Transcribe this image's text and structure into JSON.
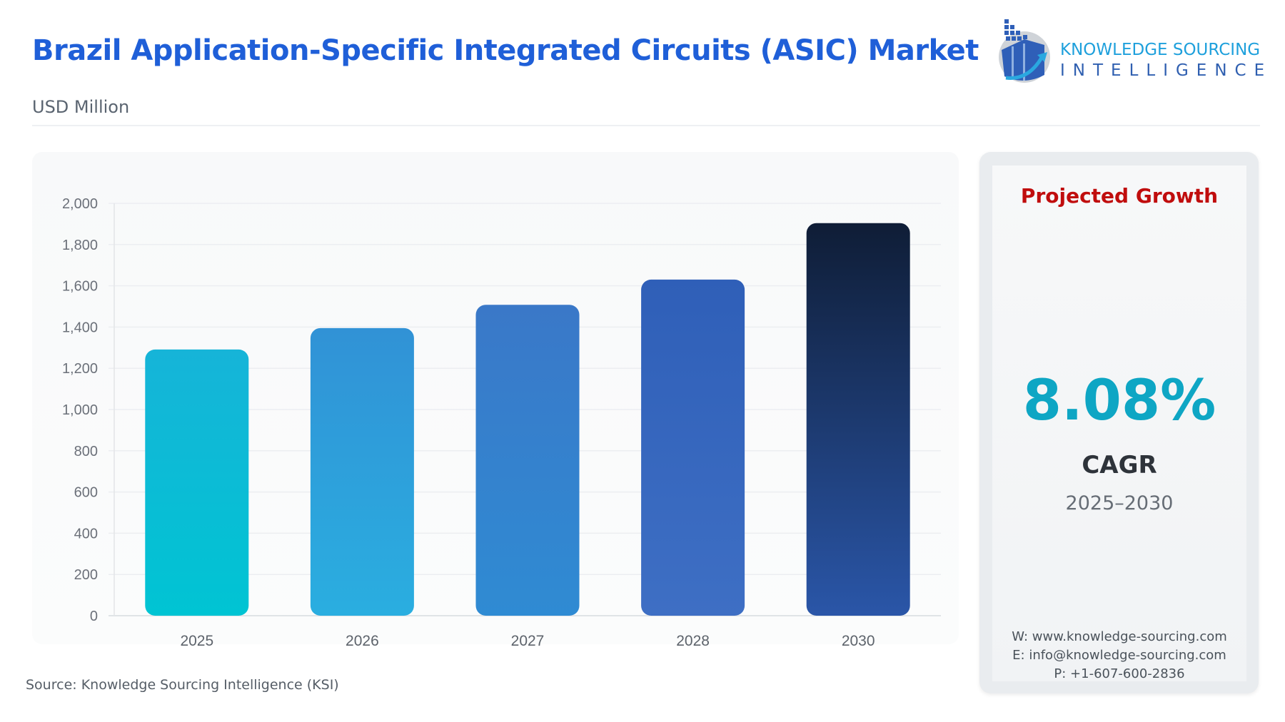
{
  "header": {
    "title": "Brazil Application-Specific Integrated Circuits (ASIC) Market",
    "subtitle": "USD Million"
  },
  "logo": {
    "line1": "KNOWLEDGE SOURCING",
    "line2": "INTELLIGENCE",
    "icon": "bar-chart-arrow-logo-icon"
  },
  "chart_data": {
    "type": "bar",
    "title": "",
    "xlabel": "",
    "ylabel": "",
    "categories": [
      "2025",
      "2026",
      "2027",
      "2028",
      "2030"
    ],
    "values": [
      1291,
      1395,
      1508,
      1630,
      1904
    ],
    "ylim": [
      0,
      2000
    ],
    "yticks": [
      0,
      200,
      400,
      600,
      800,
      1000,
      1200,
      1400,
      1600,
      1800,
      2000
    ],
    "ytick_labels": [
      "0",
      "200",
      "400",
      "600",
      "800",
      "1,000",
      "1,200",
      "1,400",
      "1,600",
      "1,800",
      "2,000"
    ],
    "grid": true,
    "legend": "none",
    "bar_colors": [
      [
        "#16b4d8",
        "#00c4d3"
      ],
      [
        "#3192d6",
        "#2aaee0"
      ],
      [
        "#3a78c8",
        "#2f8bd3"
      ],
      [
        "#2f5fb8",
        "#3e6fc4"
      ],
      [
        "#0f1d36",
        "#2a56a8"
      ]
    ]
  },
  "source": "Source: Knowledge Sourcing Intelligence (KSI)",
  "side_panel": {
    "heading": "Projected Growth",
    "cagr_value": "8.08%",
    "cagr_label": "CAGR",
    "period": "2025–2030",
    "website": "W: www.knowledge-sourcing.com",
    "email": "E: info@knowledge-sourcing.com",
    "phone": "P: +1-607-600-2836",
    "colors": {
      "heading": "#c00d0d",
      "cagr": "#0ea6c4"
    }
  }
}
